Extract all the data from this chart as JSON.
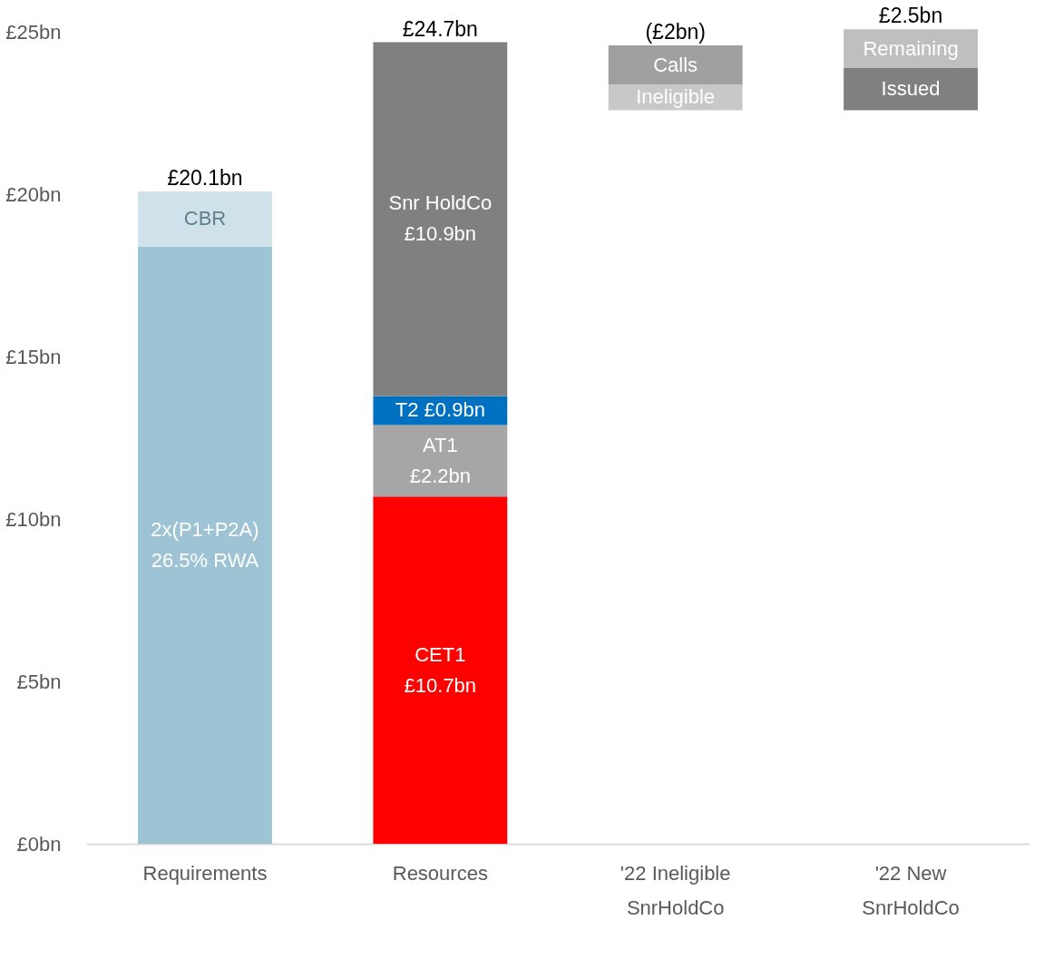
{
  "chart_data": {
    "type": "bar",
    "stacked": true,
    "categories": [
      "Requirements",
      "Resources",
      "'22 Ineligible SnrHoldCo",
      "'22 New SnrHoldCo"
    ],
    "series": [
      {
        "base": [
          0,
          0,
          22.6,
          22.6
        ],
        "colors": [
          "#9dc3d4",
          "#ff0000",
          "#c8c8c8",
          "#808080"
        ],
        "values": [
          18.4,
          10.7,
          0.8,
          1.3
        ],
        "value_labels": [
          null,
          "CET1\n£10.7bn",
          "Ineligible",
          "Issued"
        ]
      },
      {
        "colors": [
          "#cfe2ea",
          "#a6a6a6",
          "#a0a0a0",
          "#bfbfbf"
        ],
        "values": [
          1.7,
          2.2,
          1.2,
          1.2
        ],
        "value_labels": [
          "CBR",
          "AT1\n£2.2bn",
          "Calls",
          "Remaining"
        ]
      },
      {
        "color": "#0070c0",
        "values": [
          null,
          0.9,
          null,
          null
        ],
        "value_labels": [
          null,
          "T2  £0.9bn",
          null,
          null
        ]
      },
      {
        "color": "#808080",
        "values": [
          null,
          10.9,
          null,
          null
        ],
        "value_labels": [
          null,
          "Snr HoldCo\n£10.9bn",
          null,
          null
        ]
      }
    ],
    "annotations": [
      "2x(P1+P2A)\n26.5% RWA"
    ],
    "totals": [
      "£20.1bn",
      "£24.7bn",
      "(£2bn)",
      "£2.5bn"
    ],
    "ylim": [
      0,
      26
    ],
    "yticks": [
      {
        "value": 0,
        "label": "£0bn"
      },
      {
        "value": 5,
        "label": "£5bn"
      },
      {
        "value": 10,
        "label": "£10bn"
      },
      {
        "value": 15,
        "label": "£15bn"
      },
      {
        "value": 20,
        "label": "£20bn"
      },
      {
        "value": 25,
        "label": "£25bn"
      }
    ],
    "grid": false,
    "legend": false
  }
}
